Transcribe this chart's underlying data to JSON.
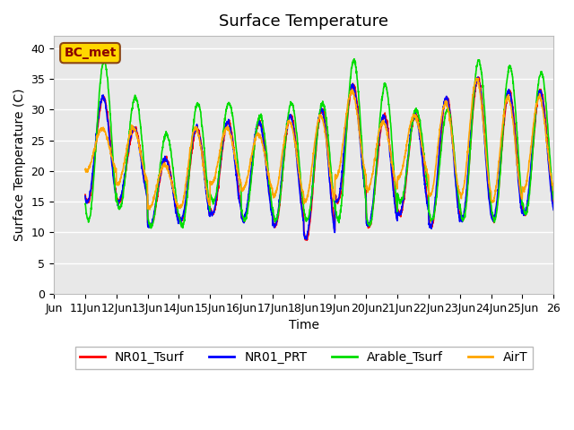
{
  "title": "Surface Temperature",
  "ylabel": "Surface Temperature (C)",
  "xlabel": "Time",
  "annotation": "BC_met",
  "annotation_color": "#8B0000",
  "annotation_bg": "#FFD700",
  "annotation_edge": "#8B4513",
  "ylim": [
    0,
    42
  ],
  "xlim": [
    0,
    16
  ],
  "yticks": [
    0,
    5,
    10,
    15,
    20,
    25,
    30,
    35,
    40
  ],
  "xtick_positions": [
    0,
    1,
    2,
    3,
    4,
    5,
    6,
    7,
    8,
    9,
    10,
    11,
    12,
    13,
    14,
    15,
    16
  ],
  "x_labels": [
    "Jun",
    "11Jun",
    "12Jun",
    "13Jun",
    "14Jun",
    "15Jun",
    "16Jun",
    "17Jun",
    "18Jun",
    "19Jun",
    "20Jun",
    "21Jun",
    "22Jun",
    "23Jun",
    "24Jun",
    "25Jun",
    "26"
  ],
  "series_colors": {
    "NR01_Tsurf": "#FF0000",
    "NR01_PRT": "#0000FF",
    "Arable_Tsurf": "#00DD00",
    "AirT": "#FFA500"
  },
  "line_width": 1.2,
  "bg_color": "#E8E8E8",
  "grid_color": "#FFFFFF",
  "title_fontsize": 13,
  "label_fontsize": 10,
  "tick_fontsize": 9,
  "legend_fontsize": 10,
  "day_peaks_NR01": [
    32,
    27,
    22,
    27,
    28,
    28,
    29,
    30,
    34,
    29,
    29,
    32,
    35,
    33,
    33
  ],
  "day_mins_NR01": [
    15,
    15,
    11,
    12,
    13,
    12,
    11,
    9,
    15,
    11,
    13,
    11,
    12,
    12,
    13
  ],
  "day_peaks_Ar": [
    38,
    32,
    26,
    31,
    31,
    29,
    31,
    31,
    38,
    34,
    30,
    30,
    38,
    37,
    36
  ],
  "day_mins_Ar": [
    12,
    14,
    11,
    11,
    15,
    12,
    12,
    12,
    12,
    11,
    15,
    12,
    12,
    12,
    13
  ],
  "day_peaks_Air": [
    27,
    27,
    21,
    27,
    27,
    26,
    28,
    29,
    33,
    28,
    29,
    31,
    35,
    32,
    32
  ],
  "day_mins_Air": [
    20,
    18,
    14,
    14,
    18,
    17,
    16,
    15,
    19,
    17,
    19,
    16,
    16,
    15,
    17
  ]
}
